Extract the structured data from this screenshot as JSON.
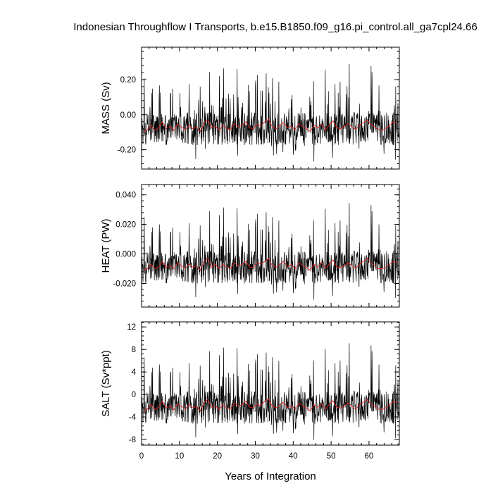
{
  "title": "Indonesian Throughflow I Transports, b.e15.B1850.f09_g16.pi_control.all_ga7cpl24.66",
  "xlabel": "Years of Integration",
  "colors": {
    "monthly": "#000000",
    "annual": "#e02020"
  },
  "chart_data": [
    {
      "type": "line",
      "ylabel": "MASS (Sv)",
      "xlim": [
        0,
        68
      ],
      "ylim": [
        -0.31,
        0.385
      ],
      "x_ticks": [
        0,
        10,
        20,
        30,
        40,
        50,
        60
      ],
      "x_tick_labels": [
        "0",
        "10",
        "20",
        "30",
        "40",
        "50",
        "60"
      ],
      "y_ticks": [
        -0.2,
        0.0,
        0.2
      ],
      "y_tick_labels": [
        "-0.20",
        "0.00",
        "0.20"
      ],
      "grid": false,
      "series": [
        {
          "style": "black-thin",
          "sampling": "monthly",
          "baseline": -0.08,
          "amplitude": 0.34,
          "points": 816
        },
        {
          "style": "red",
          "sampling": "annual",
          "values": [
            -0.1,
            -0.085,
            -0.06,
            -0.09,
            -0.075,
            -0.04,
            -0.08,
            -0.065,
            -0.09,
            -0.055,
            -0.07,
            -0.085,
            -0.06,
            -0.08,
            -0.07,
            -0.095,
            -0.045,
            -0.03,
            -0.075,
            -0.065,
            -0.09,
            -0.06,
            -0.08,
            -0.085,
            -0.05,
            -0.07,
            -0.06,
            -0.04,
            -0.075,
            -0.08,
            -0.055,
            -0.065,
            -0.04,
            -0.025,
            -0.07,
            -0.08,
            -0.06,
            -0.045,
            -0.075,
            -0.065,
            -0.085,
            -0.05,
            -0.07,
            -0.08,
            -0.095,
            -0.06,
            -0.075,
            -0.055,
            -0.085,
            -0.06,
            -0.035,
            -0.075,
            -0.08,
            -0.065,
            -0.05,
            -0.07,
            -0.085,
            -0.06,
            -0.045,
            -0.03,
            -0.055,
            -0.07,
            -0.085,
            -0.09,
            -0.075,
            -0.06,
            -0.04,
            -0.05
          ]
        }
      ]
    },
    {
      "type": "line",
      "ylabel": "HEAT (PW)",
      "xlim": [
        0,
        68
      ],
      "ylim": [
        -0.036,
        0.047
      ],
      "x_ticks": [
        0,
        10,
        20,
        30,
        40,
        50,
        60
      ],
      "x_tick_labels": [
        "0",
        "10",
        "20",
        "30",
        "40",
        "50",
        "60"
      ],
      "y_ticks": [
        -0.02,
        0.0,
        0.02,
        0.04
      ],
      "y_tick_labels": [
        "-0.020",
        "0.000",
        "0.020",
        "0.040"
      ],
      "grid": false,
      "series": [
        {
          "style": "black-thin",
          "sampling": "monthly",
          "baseline": -0.009,
          "amplitude": 0.04,
          "points": 816
        },
        {
          "style": "red",
          "sampling": "annual",
          "values": [
            -0.011,
            -0.01,
            -0.007,
            -0.01,
            -0.009,
            -0.005,
            -0.009,
            -0.008,
            -0.01,
            -0.006,
            -0.008,
            -0.01,
            -0.007,
            -0.009,
            -0.008,
            -0.011,
            -0.005,
            -0.003,
            -0.009,
            -0.007,
            -0.01,
            -0.007,
            -0.009,
            -0.01,
            -0.006,
            -0.008,
            -0.007,
            -0.005,
            -0.009,
            -0.009,
            -0.006,
            -0.007,
            -0.005,
            -0.003,
            -0.008,
            -0.009,
            -0.007,
            -0.005,
            -0.009,
            -0.007,
            -0.01,
            -0.006,
            -0.008,
            -0.009,
            -0.011,
            -0.007,
            -0.009,
            -0.006,
            -0.01,
            -0.007,
            -0.004,
            -0.009,
            -0.009,
            -0.008,
            -0.006,
            -0.008,
            -0.01,
            -0.007,
            -0.005,
            -0.003,
            -0.006,
            -0.008,
            -0.01,
            -0.01,
            -0.009,
            -0.007,
            -0.005,
            -0.006
          ]
        }
      ]
    },
    {
      "type": "line",
      "ylabel": "SALT (Sv*ppt)",
      "xlim": [
        0,
        68
      ],
      "ylim": [
        -9.0,
        12.9
      ],
      "x_ticks": [
        0,
        10,
        20,
        30,
        40,
        50,
        60
      ],
      "x_tick_labels": [
        "0",
        "10",
        "20",
        "30",
        "40",
        "50",
        "60"
      ],
      "y_ticks": [
        -8,
        -4,
        0,
        4,
        8,
        12
      ],
      "y_tick_labels": [
        "-8",
        "-4",
        "0",
        "4",
        "8",
        "12"
      ],
      "grid": false,
      "series": [
        {
          "style": "black-thin",
          "sampling": "monthly",
          "baseline": -2.3,
          "amplitude": 10.5,
          "points": 816
        },
        {
          "style": "red",
          "sampling": "annual",
          "values": [
            -3.0,
            -2.6,
            -1.8,
            -2.7,
            -2.3,
            -1.2,
            -2.4,
            -2.0,
            -2.7,
            -1.7,
            -2.1,
            -2.6,
            -1.8,
            -2.4,
            -2.1,
            -2.9,
            -1.4,
            -0.9,
            -2.3,
            -2.0,
            -2.7,
            -1.8,
            -2.4,
            -2.6,
            -1.5,
            -2.1,
            -1.8,
            -1.2,
            -2.3,
            -2.4,
            -1.7,
            -2.0,
            -1.2,
            -0.8,
            -2.1,
            -2.4,
            -1.8,
            -1.4,
            -2.3,
            -2.0,
            -2.6,
            -1.5,
            -2.1,
            -2.4,
            -2.9,
            -1.8,
            -2.3,
            -1.7,
            -2.6,
            -1.8,
            -1.1,
            -2.3,
            -2.4,
            -2.0,
            -1.5,
            -2.1,
            -2.6,
            -1.8,
            -1.4,
            -0.9,
            -1.7,
            -2.1,
            -2.6,
            -2.7,
            -2.3,
            -1.8,
            -1.2,
            -1.5
          ]
        }
      ]
    }
  ]
}
